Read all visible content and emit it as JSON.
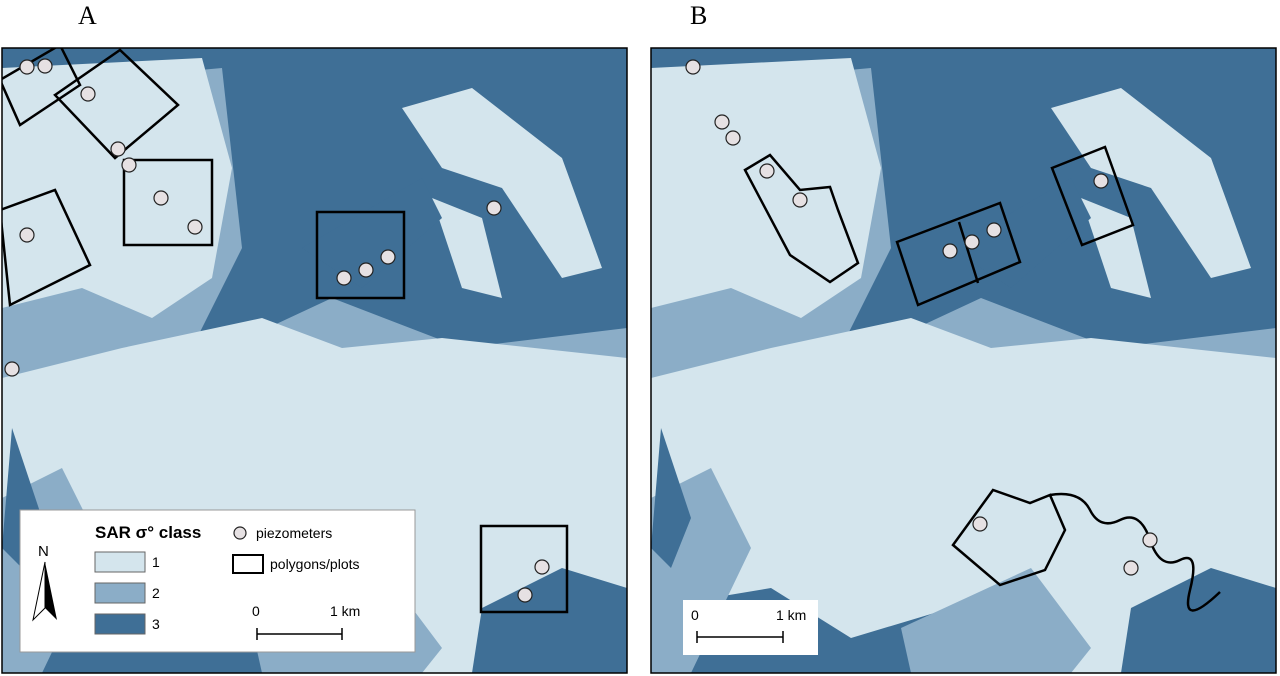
{
  "panels": [
    {
      "label": "A",
      "scale_bar": {
        "start": "0",
        "end": "1 km"
      }
    },
    {
      "label": "B",
      "scale_bar": {
        "start": "0",
        "end": "1 km"
      }
    }
  ],
  "legend": {
    "title": "SAR σ° class",
    "classes": [
      "1",
      "2",
      "3"
    ],
    "piezometers": "piezometers",
    "plots": "polygons/plots",
    "north": "N"
  }
}
